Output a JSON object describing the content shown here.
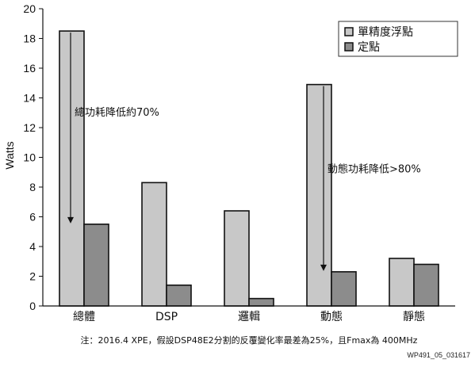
{
  "chart_data": {
    "type": "bar",
    "ylabel": "Watts",
    "ylim": [
      0,
      20
    ],
    "yticks": [
      0,
      2,
      4,
      6,
      8,
      10,
      12,
      14,
      16,
      18,
      20
    ],
    "categories": [
      "總體",
      "DSP",
      "邏輯",
      "動態",
      "靜態"
    ],
    "series": [
      {
        "name": "單精度浮點",
        "color": "#c8c8c8",
        "values": [
          18.5,
          8.3,
          6.4,
          14.9,
          3.2
        ]
      },
      {
        "name": "定點",
        "color": "#8c8c8c",
        "values": [
          5.5,
          1.4,
          0.5,
          2.3,
          2.8
        ]
      }
    ],
    "legend_position": "top-right",
    "grid": false,
    "annotations": [
      {
        "text": "總功耗降低約70%",
        "category_index": 0,
        "from": 18.5,
        "to": 5.5
      },
      {
        "text": "動態功耗降低>80%",
        "category_index": 3,
        "from": 14.9,
        "to": 2.3
      }
    ]
  },
  "footnote": "注：2016.4 XPE，假設DSP48E2分割的反覆變化率最差為25%，且Fmax為 400MHz",
  "figure_id": "WP491_05_031617"
}
